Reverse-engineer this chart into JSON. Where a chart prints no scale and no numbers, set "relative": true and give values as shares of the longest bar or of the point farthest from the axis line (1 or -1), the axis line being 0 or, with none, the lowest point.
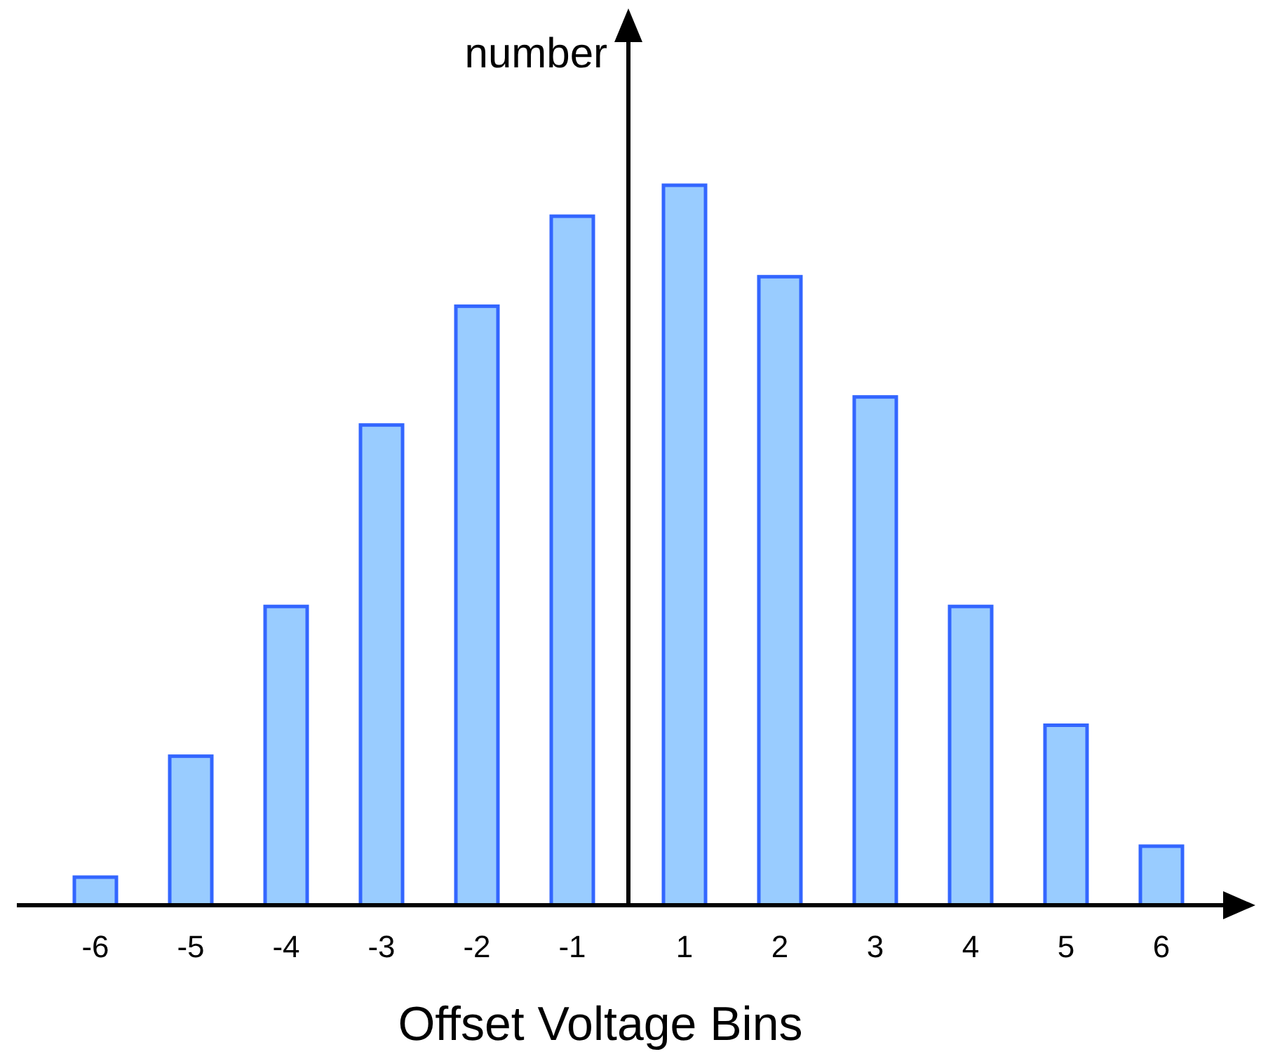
{
  "chart_data": {
    "type": "bar",
    "relative": true,
    "xlabel": "Offset Voltage Bins",
    "ylabel": "number",
    "categories": [
      "-6",
      "-5",
      "-4",
      "-3",
      "-2",
      "-1",
      "1",
      "2",
      "3",
      "4",
      "5",
      "6"
    ],
    "values": [
      0.039,
      0.207,
      0.415,
      0.667,
      0.832,
      0.957,
      1,
      0.873,
      0.706,
      0.415,
      0.25,
      0.082
    ],
    "color": "#99ccff"
  }
}
